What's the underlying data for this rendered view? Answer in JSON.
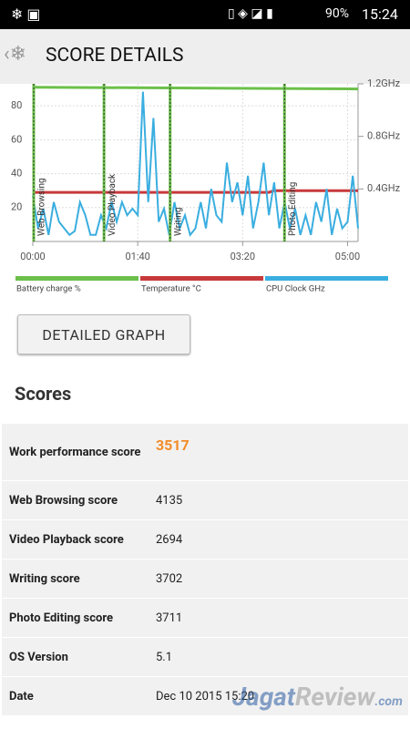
{
  "status_bar": {
    "battery": "90%",
    "time": "15:24"
  },
  "header": {
    "title": "SCORE DETAILS"
  },
  "chart_data": {
    "type": "line",
    "xlim": [
      0,
      310
    ],
    "xticks": [
      {
        "value": 0,
        "label": "00:00"
      },
      {
        "value": 100,
        "label": "01:40"
      },
      {
        "value": 200,
        "label": "03:20"
      },
      {
        "value": 300,
        "label": "05:00"
      }
    ],
    "ylim": [
      0,
      93
    ],
    "yticks": [
      20,
      40,
      60,
      80
    ],
    "y2lim": [
      0,
      1.2
    ],
    "y2ticks": [
      {
        "value": 0.4,
        "label": "0.4GHz"
      },
      {
        "value": 0.8,
        "label": "0.8GHz"
      },
      {
        "value": 1.2,
        "label": "1.2GHz"
      }
    ],
    "grid": true,
    "sections": [
      {
        "label": "Web Browsing",
        "x": 0
      },
      {
        "label": "Video Playback",
        "x": 67
      },
      {
        "label": "Writing",
        "x": 130
      },
      {
        "label": "Photo Editing",
        "x": 239
      }
    ],
    "series": [
      {
        "name": "Battery charge %",
        "color": "#6cc04a",
        "x": [
          0,
          310
        ],
        "values": [
          91,
          90
        ]
      },
      {
        "name": "Temperature °C",
        "color": "#c8393b",
        "x": [
          0,
          225,
          230,
          310
        ],
        "values": [
          29,
          29,
          30,
          30
        ]
      },
      {
        "name": "CPU Clock GHz",
        "color": "#3aaee0",
        "axis": "y2",
        "x": [
          0,
          5,
          10,
          15,
          20,
          25,
          30,
          35,
          40,
          45,
          50,
          55,
          60,
          65,
          70,
          75,
          80,
          85,
          90,
          95,
          100,
          105,
          110,
          115,
          120,
          125,
          130,
          135,
          140,
          145,
          150,
          155,
          160,
          165,
          170,
          175,
          180,
          185,
          190,
          195,
          200,
          205,
          210,
          215,
          220,
          225,
          230,
          235,
          240,
          245,
          250,
          255,
          260,
          265,
          270,
          275,
          280,
          285,
          290,
          295,
          300,
          305,
          310
        ],
        "values": [
          0.35,
          0.1,
          0.25,
          0.05,
          0.3,
          0.15,
          0.1,
          0.05,
          0.08,
          0.3,
          0.2,
          0.05,
          0.05,
          0.2,
          0.1,
          0.3,
          0.15,
          0.3,
          0.2,
          0.25,
          0.2,
          1.14,
          0.3,
          0.94,
          0.15,
          0.25,
          0.05,
          0.3,
          0.1,
          0.2,
          0.05,
          0.1,
          0.3,
          0.1,
          0.4,
          0.2,
          0.15,
          0.6,
          0.3,
          0.45,
          0.2,
          0.5,
          0.1,
          0.3,
          0.6,
          0.2,
          0.45,
          0.1,
          0.3,
          0.1,
          0.25,
          0.05,
          0.2,
          0.05,
          0.3,
          0.15,
          0.4,
          0.05,
          0.25,
          0.1,
          0.15,
          0.5,
          0.1
        ]
      }
    ]
  },
  "button": {
    "label": "DETAILED GRAPH"
  },
  "scores": {
    "heading": "Scores",
    "rows": [
      [
        "Work performance score",
        "3517"
      ],
      [
        "Web Browsing score",
        "4135"
      ],
      [
        "Video Playback score",
        "2694"
      ],
      [
        "Writing score",
        "3702"
      ],
      [
        "Photo Editing score",
        "3711"
      ],
      [
        "OS Version",
        "5.1"
      ],
      [
        "Date",
        "Dec 10 2015 15:20"
      ]
    ]
  },
  "watermark": [
    "Jagat",
    "Review",
    ".com"
  ]
}
